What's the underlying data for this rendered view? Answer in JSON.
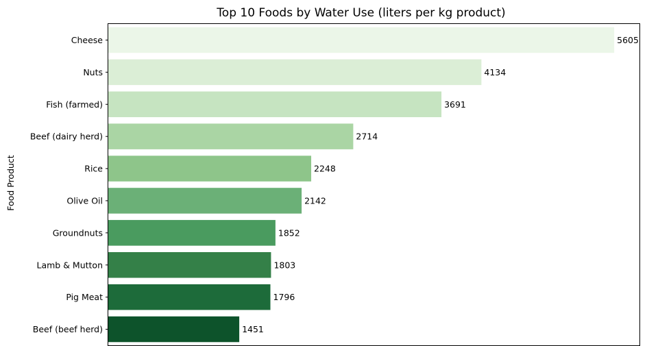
{
  "chart_data": {
    "type": "bar",
    "orientation": "horizontal",
    "title": "Top 10 Foods by Water Use (liters per kg product)",
    "xlabel": "",
    "ylabel": "Food Product",
    "categories": [
      "Cheese",
      "Nuts",
      "Fish (farmed)",
      "Beef (dairy herd)",
      "Rice",
      "Olive Oil",
      "Groundnuts",
      "Lamb & Mutton",
      "Pig Meat",
      "Beef (beef herd)"
    ],
    "values": [
      5605,
      4134,
      3691,
      2714,
      2248,
      2142,
      1852,
      1803,
      1796,
      1451
    ],
    "data_labels": [
      "5605",
      "4134",
      "3691",
      "2714",
      "2248",
      "2142",
      "1852",
      "1803",
      "1796",
      "1451"
    ],
    "xlim": [
      0,
      5885
    ],
    "x_ticks_visible": false,
    "grid": false,
    "colors": [
      "#ebf6e8",
      "#dbeed6",
      "#c6e4c1",
      "#aad5a4",
      "#8ec58a",
      "#6bb077",
      "#4a9b5f",
      "#348048",
      "#1d6b3a",
      "#0d532b"
    ]
  }
}
